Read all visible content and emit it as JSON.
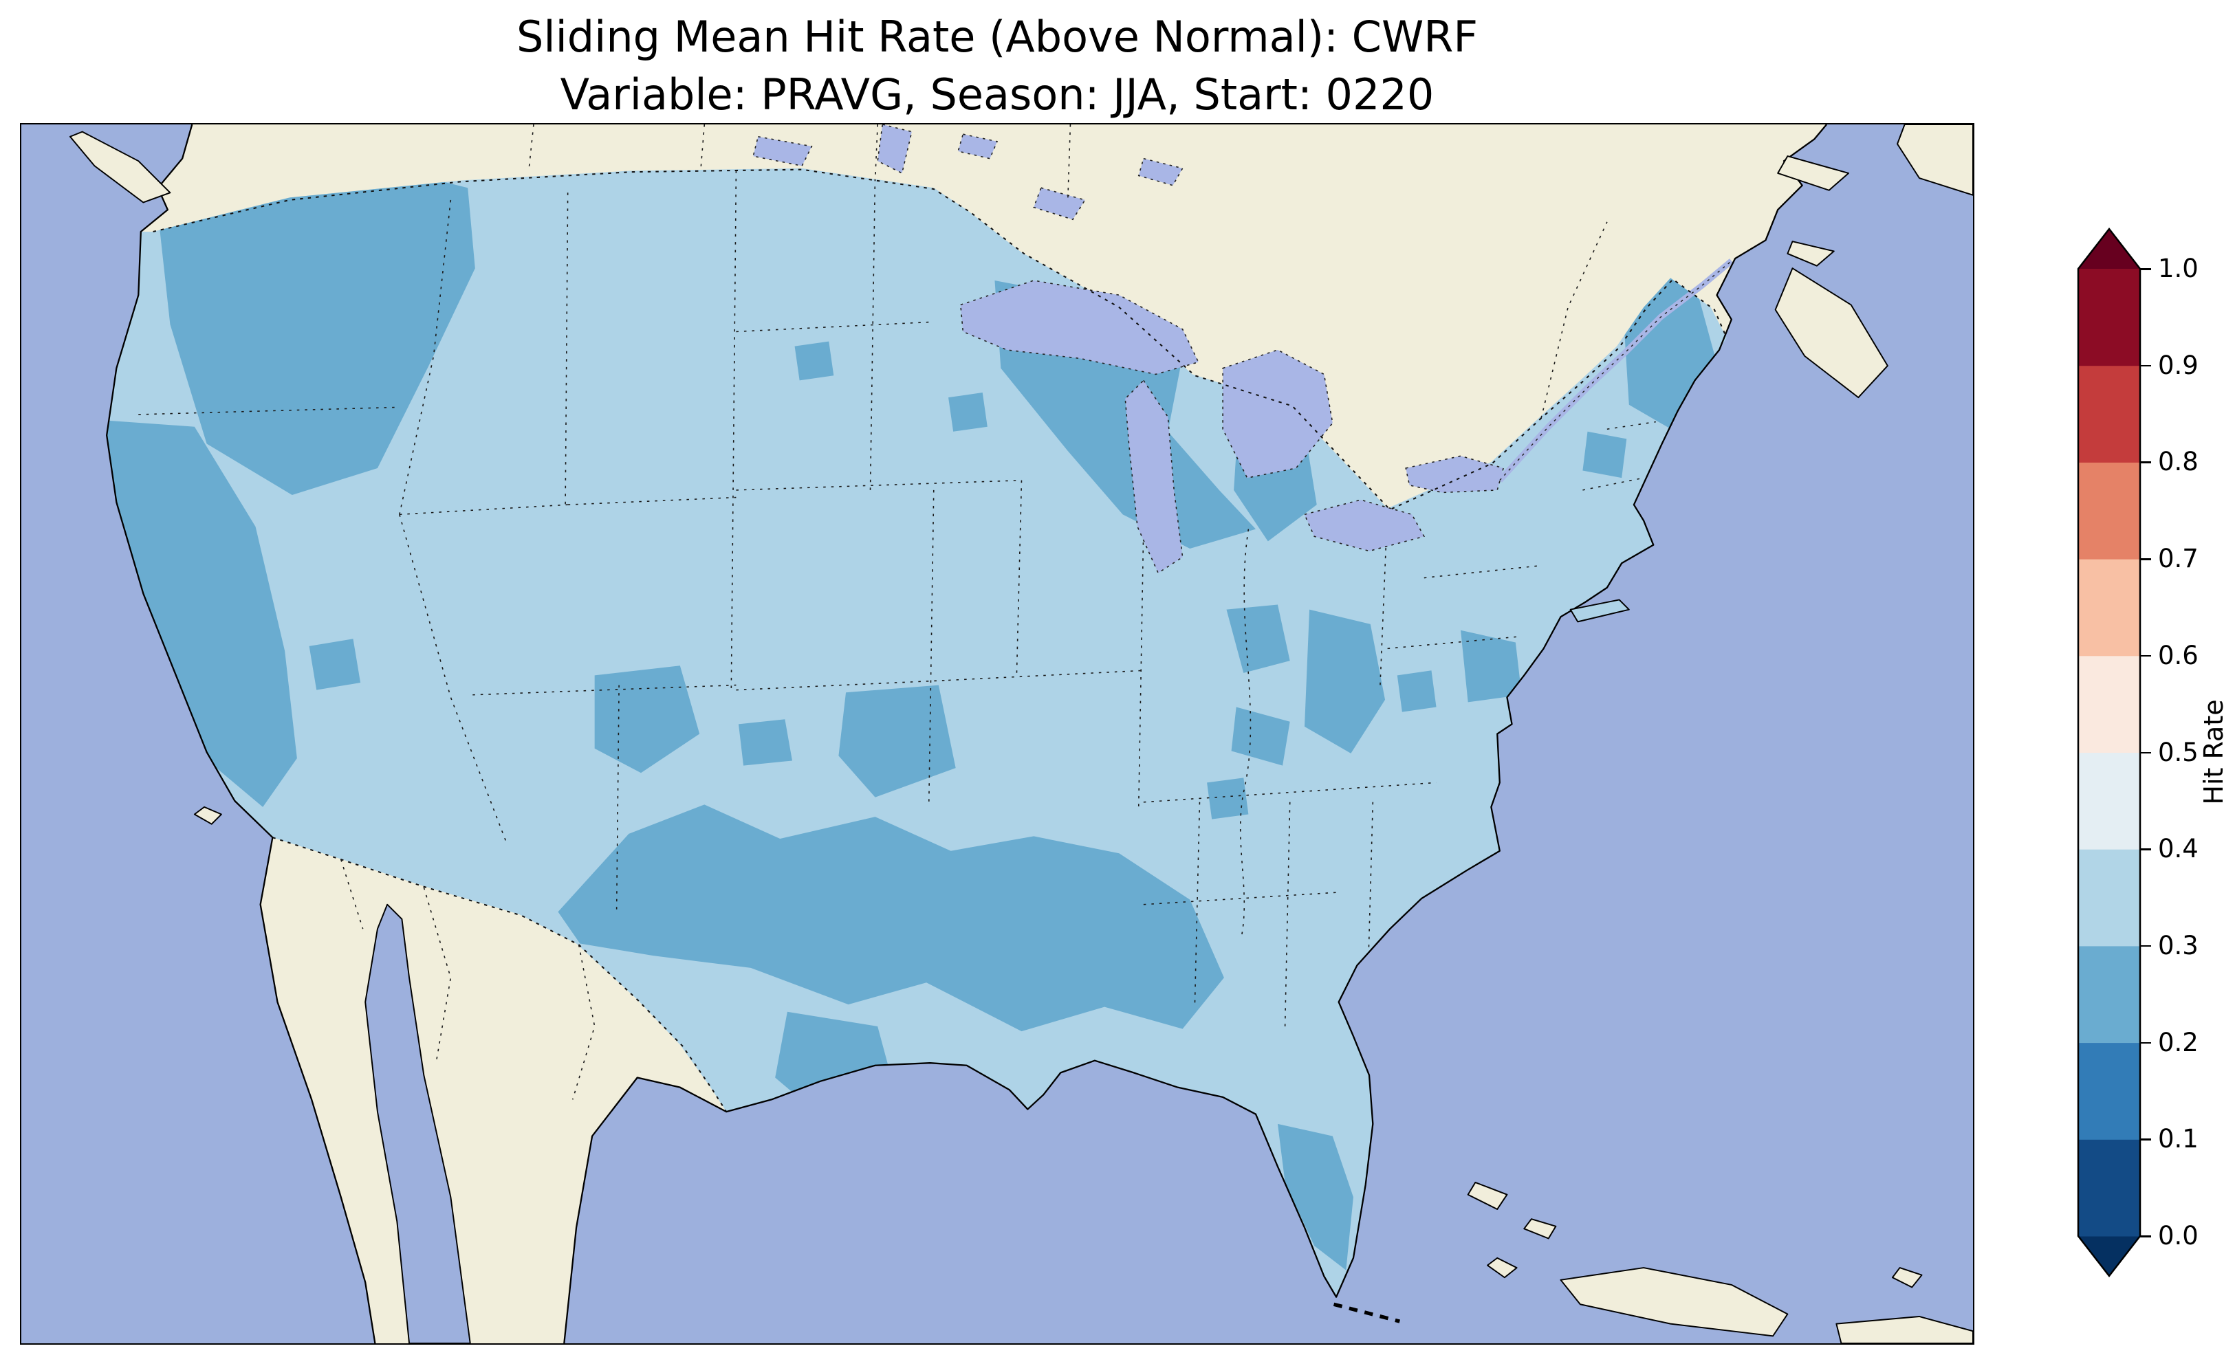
{
  "figure": {
    "title_line1": "Sliding Mean Hit Rate (Above Normal): CWRF",
    "title_line2": "Variable: PRAVG, Season: JJA, Start: 0220"
  },
  "colorbar": {
    "label": "Hit Rate",
    "tick_labels": [
      "1.0",
      "0.9",
      "0.8",
      "0.7",
      "0.6",
      "0.5",
      "0.4",
      "0.3",
      "0.2",
      "0.1",
      "0.0"
    ],
    "segments_bottom_to_top": [
      "#134b86",
      "#327cb7",
      "#6aacd0",
      "#b1d5e7",
      "#e4eef3",
      "#fae9df",
      "#f8c0a4",
      "#e58267",
      "#c43c3c",
      "#8c0c25"
    ],
    "under_color": "#053061",
    "over_color": "#67001f"
  },
  "map": {
    "colors": {
      "ocean": "#9db0dd",
      "land": "#f1eedb",
      "lakes": "#a9b6e6",
      "hit_rate_03_04": "#aed3e7",
      "hit_rate_02_03": "#6aacd0",
      "hit_rate_04_05": "#e0ecf4",
      "coastline": "#000000"
    }
  },
  "chart_data": {
    "type": "heatmap",
    "title": "Sliding Mean Hit Rate (Above Normal): CWRF",
    "subtitle": "Variable: PRAVG, Season: JJA, Start: 0220",
    "region": "Contiguous United States (gridded map, state and national borders dotted)",
    "colorbar": {
      "label": "Hit Rate",
      "range": [
        0.0,
        1.0
      ],
      "ticks": [
        0.0,
        0.1,
        0.2,
        0.3,
        0.4,
        0.5,
        0.6,
        0.7,
        0.8,
        0.9,
        1.0
      ],
      "bin_width": 0.1,
      "colormap": "RdBu_r (blue low, white mid, red high)",
      "extend": "both"
    },
    "values_summary": {
      "dominant_bin": [
        0.3,
        0.4
      ],
      "secondary_bin": [
        0.2,
        0.3
      ],
      "regions_in_0.2_0.3": [
        "Pacific Northwest interior (E Washington, Oregon, Idaho)",
        "Coastal and northern California",
        "Southern Plains belt: New Mexico, Texas, Oklahoma panhandle",
        "Lower Mississippi valley: Louisiana, Arkansas, Mississippi, Alabama",
        "Upper Midwest: NE Minnesota, Wisconsin, Michigan",
        "Missouri / Illinois patches",
        "Central Colorado and Kansas patches",
        "Florida peninsula",
        "Northern New England (Maine, Vermont/New Hampshire spots)",
        "Chesapeake / Delmarva patches"
      ],
      "regions_in_0.3_0.4": [
        "Most of the remaining contiguous United States"
      ],
      "no_data": [
        "Canada and Mexico shown as beige land; oceans and Great Lakes in blue"
      ]
    }
  }
}
